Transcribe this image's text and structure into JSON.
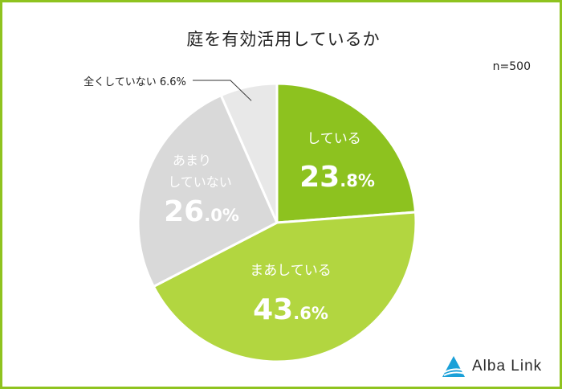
{
  "title": "庭を有効活用しているか",
  "sample_size": "n=500",
  "brand": {
    "name": "Alba Link"
  },
  "colors": {
    "frame": "#8fc31f",
    "slice_1": "#8dc21f",
    "slice_2": "#b2d640",
    "slice_3": "#d9d9d9",
    "slice_4": "#e8e8e8",
    "label_light": "#ffffff",
    "label_dark": "#222222"
  },
  "chart_data": {
    "type": "pie",
    "title": "庭を有効活用しているか",
    "slices": [
      {
        "label": "している",
        "value": 23.8,
        "value_int": "23",
        "value_dec": ".8%"
      },
      {
        "label": "まあしている",
        "value": 43.6,
        "value_int": "43",
        "value_dec": ".6%"
      },
      {
        "label": "あまりしていない",
        "label_lines": [
          "あまり",
          "していない"
        ],
        "value": 26.0,
        "value_int": "26",
        "value_dec": ".0%"
      },
      {
        "label": "全くしていない",
        "value": 6.6,
        "value_text": "全くしていない 6.6%"
      }
    ]
  }
}
